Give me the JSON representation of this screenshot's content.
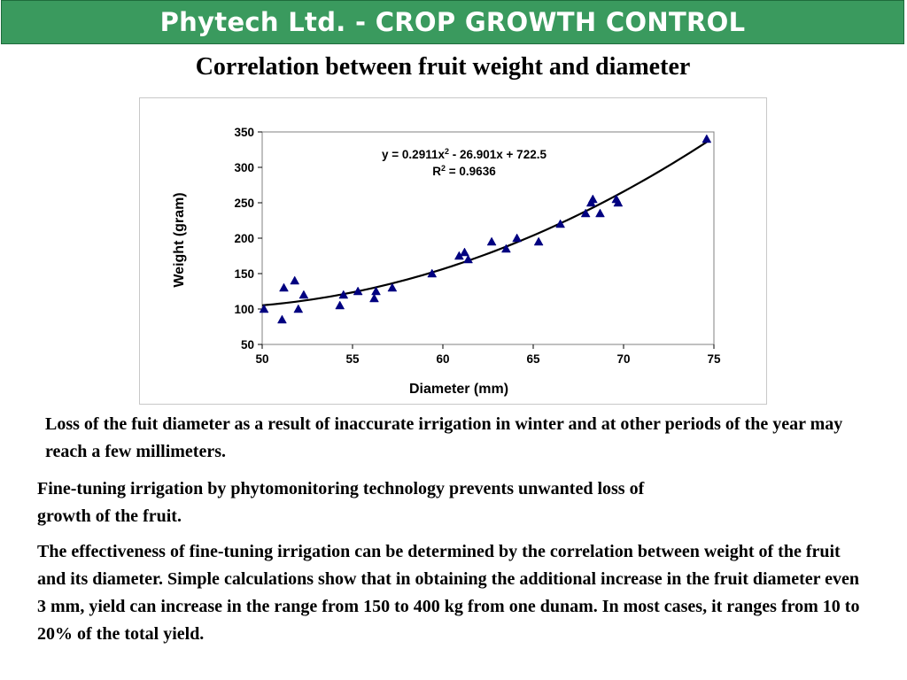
{
  "header": {
    "title": "Phytech Ltd. - CROP GROWTH CONTROL",
    "color": "#3a9a5e"
  },
  "chart_data": {
    "type": "scatter",
    "title": "Correlation between fruit weight and diameter",
    "xlabel": "Diameter (mm)",
    "ylabel": "Weight (gram)",
    "xlim": [
      50,
      75
    ],
    "ylim": [
      50,
      350
    ],
    "xticks": [
      50,
      55,
      60,
      65,
      70,
      75
    ],
    "yticks": [
      50,
      100,
      150,
      200,
      250,
      300,
      350
    ],
    "grid": false,
    "legend": "none",
    "marker": "triangle",
    "marker_color": "#000080",
    "points": [
      [
        50.1,
        100
      ],
      [
        51.1,
        85
      ],
      [
        51.2,
        130
      ],
      [
        51.8,
        140
      ],
      [
        52.0,
        100
      ],
      [
        52.3,
        120
      ],
      [
        54.3,
        105
      ],
      [
        54.5,
        120
      ],
      [
        55.3,
        125
      ],
      [
        56.2,
        115
      ],
      [
        56.3,
        125
      ],
      [
        57.2,
        130
      ],
      [
        59.4,
        150
      ],
      [
        60.9,
        175
      ],
      [
        61.2,
        180
      ],
      [
        61.4,
        170
      ],
      [
        62.7,
        195
      ],
      [
        63.5,
        185
      ],
      [
        64.1,
        200
      ],
      [
        65.3,
        195
      ],
      [
        66.5,
        220
      ],
      [
        67.9,
        235
      ],
      [
        68.2,
        250
      ],
      [
        68.3,
        255
      ],
      [
        68.7,
        235
      ],
      [
        69.6,
        255
      ],
      [
        69.7,
        250
      ],
      [
        74.6,
        340
      ]
    ],
    "trendline": {
      "type": "polynomial",
      "coefficients": [
        0.2911,
        -26.901,
        722.5
      ],
      "x_range": [
        50,
        74.6
      ]
    },
    "annotation": {
      "equation": "y = 0.2911x",
      "equation_sup": "2",
      "equation_rest": " - 26.901x + 722.5",
      "r2_label": "R",
      "r2_sup": "2",
      "r2_rest": " = 0.9636"
    }
  },
  "paragraphs": {
    "p1": "Loss of the fuit diameter as a result of inaccurate irrigation in winter and at other periods of the year may reach a few millimeters.",
    "p2": "Fine-tuning irrigation by phytomonitoring technology prevents unwanted loss of growth of the fruit.",
    "p3": "The effectiveness of fine-tuning irrigation can be determined by the correlation between weight of the fruit and its diameter. Simple calculations show that in obtaining the additional increase in the fruit diameter even 3 mm, yield can increase in the  range from 150 to 400 kg from one dunam. In most cases, it ranges from 10 to 20% of the total yield."
  }
}
